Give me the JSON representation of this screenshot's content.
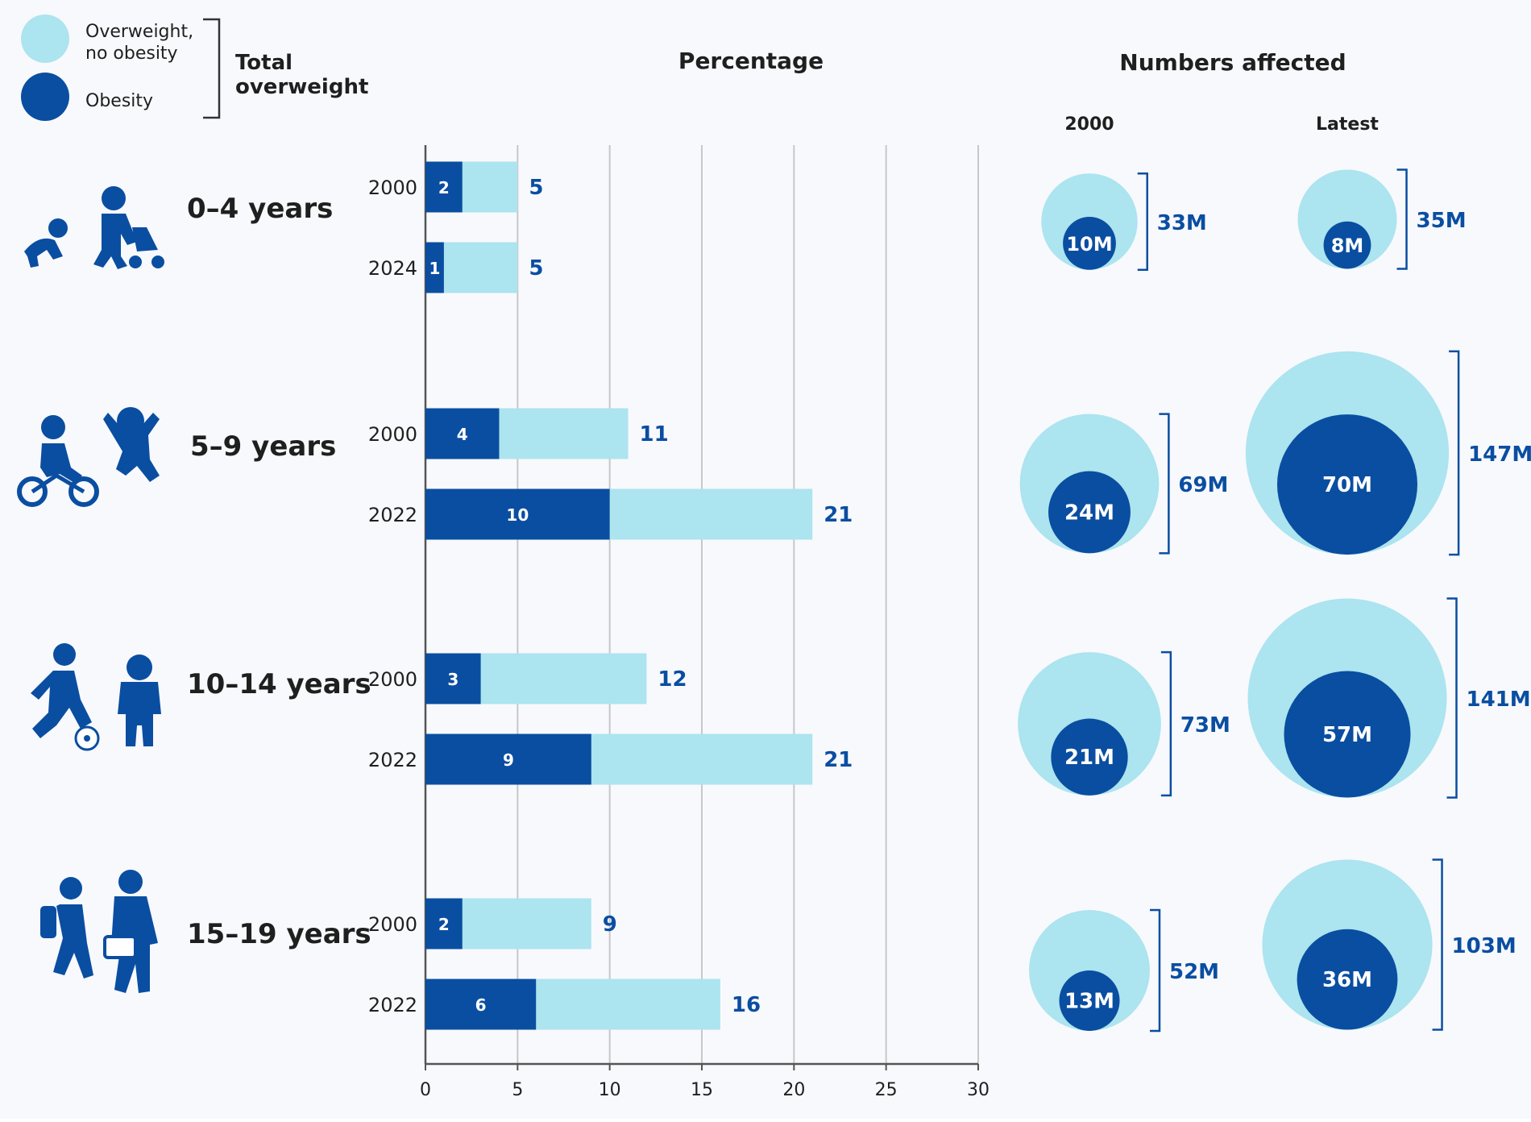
{
  "colors": {
    "light": "#ace4ef",
    "dark": "#0a4ea1",
    "label": "#0a4ea1",
    "grid": "#c8c8c8",
    "text": "#1f1f1f",
    "background": "#f8f9fd"
  },
  "legend": {
    "overweight_label": [
      "Overweight,",
      "no obesity"
    ],
    "obesity_label": "Obesity",
    "total_label": [
      "Total",
      "overweight"
    ]
  },
  "headers": {
    "percentage": "Percentage",
    "numbers": "Numbers affected",
    "col_2000": "2000",
    "col_latest": "Latest"
  },
  "chart_data": {
    "type": "bar",
    "orientation": "horizontal",
    "stacked": true,
    "title": "Percentage",
    "xlim": [
      0,
      30
    ],
    "xticks": [
      0,
      5,
      10,
      15,
      20,
      25,
      30
    ],
    "grid": true,
    "series": [
      {
        "name": "Obesity",
        "color": "#0a4ea1"
      },
      {
        "name": "Overweight, no obesity",
        "color": "#ace4ef"
      }
    ],
    "groups": [
      {
        "label": "0–4 years",
        "icon": "toddler-icon",
        "rows": [
          {
            "year": "2000",
            "obesity": 2,
            "total": 5
          },
          {
            "year": "2024",
            "obesity": 1,
            "total": 5
          }
        ],
        "numbers_2000": {
          "obesity": "10M",
          "total": "33M",
          "obesity_value": 10,
          "total_value": 33
        },
        "numbers_latest": {
          "obesity": "8M",
          "total": "35M",
          "obesity_value": 8,
          "total_value": 35
        }
      },
      {
        "label": "5–9 years",
        "icon": "child-bike-icon",
        "rows": [
          {
            "year": "2000",
            "obesity": 4,
            "total": 11
          },
          {
            "year": "2022",
            "obesity": 10,
            "total": 21
          }
        ],
        "numbers_2000": {
          "obesity": "24M",
          "total": "69M",
          "obesity_value": 24,
          "total_value": 69
        },
        "numbers_latest": {
          "obesity": "70M",
          "total": "147M",
          "obesity_value": 70,
          "total_value": 147
        }
      },
      {
        "label": "10–14 years",
        "icon": "child-football-icon",
        "rows": [
          {
            "year": "2000",
            "obesity": 3,
            "total": 12
          },
          {
            "year": "2022",
            "obesity": 9,
            "total": 21
          }
        ],
        "numbers_2000": {
          "obesity": "21M",
          "total": "73M",
          "obesity_value": 21,
          "total_value": 73
        },
        "numbers_latest": {
          "obesity": "57M",
          "total": "141M",
          "obesity_value": 57,
          "total_value": 141
        }
      },
      {
        "label": "15–19 years",
        "icon": "teen-backpack-icon",
        "rows": [
          {
            "year": "2000",
            "obesity": 2,
            "total": 9
          },
          {
            "year": "2022",
            "obesity": 6,
            "total": 16
          }
        ],
        "numbers_2000": {
          "obesity": "13M",
          "total": "52M",
          "obesity_value": 13,
          "total_value": 52
        },
        "numbers_latest": {
          "obesity": "36M",
          "total": "103M",
          "obesity_value": 36,
          "total_value": 103
        }
      }
    ]
  }
}
